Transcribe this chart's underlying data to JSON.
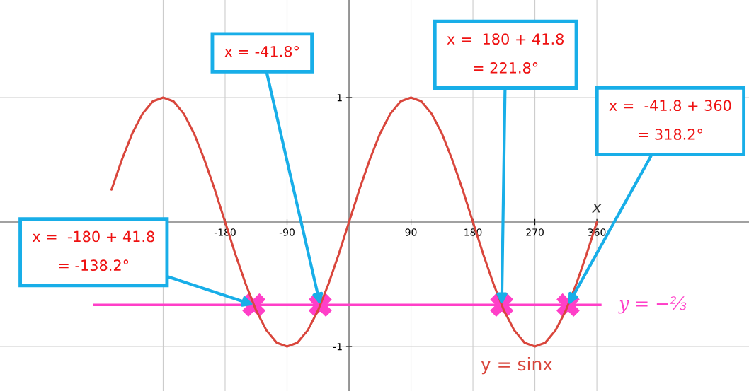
{
  "chart_data": {
    "type": "line",
    "xlabel": "x",
    "xlim": [
      -507,
      581
    ],
    "ylim": [
      -1.358,
      1.784
    ],
    "xticks": [
      {
        "value": -270,
        "label": null
      },
      -180,
      -90,
      90,
      180,
      270,
      360
    ],
    "yticks": [
      1,
      -1
    ],
    "grid": true,
    "legend": false,
    "series": [
      {
        "name": "y = sinx",
        "color": "#d9463c",
        "marker": "none",
        "x": [
          -345,
          -330,
          -315,
          -300,
          -285,
          -270,
          -255,
          -240,
          -225,
          -210,
          -195,
          -180,
          -165,
          -150,
          -135,
          -120,
          -105,
          -90,
          -75,
          -60,
          -45,
          -30,
          -15,
          0,
          15,
          30,
          45,
          60,
          75,
          90,
          105,
          120,
          135,
          150,
          165,
          180,
          195,
          210,
          225,
          240,
          255,
          270,
          285,
          300,
          315,
          330,
          345,
          360
        ],
        "values": [
          0.26,
          0.5,
          0.71,
          0.87,
          0.97,
          1,
          0.97,
          0.87,
          0.71,
          0.5,
          0.26,
          0,
          -0.26,
          -0.5,
          -0.71,
          -0.87,
          -0.97,
          -1,
          -0.97,
          -0.87,
          -0.71,
          -0.5,
          -0.26,
          0,
          0.26,
          0.5,
          0.71,
          0.87,
          0.97,
          1,
          0.97,
          0.87,
          0.71,
          0.5,
          0.26,
          0,
          -0.26,
          -0.5,
          -0.71,
          -0.87,
          -0.97,
          -1,
          -0.97,
          -0.87,
          -0.71,
          -0.5,
          -0.26,
          0
        ]
      },
      {
        "color": "#ff3fc8",
        "type": "scatter",
        "marker": "cross",
        "x": [
          -138.2,
          -41.8,
          221.8,
          318.2
        ],
        "values": [
          -0.667,
          -0.667,
          -0.667,
          -0.667
        ]
      }
    ],
    "ref_lines": [
      {
        "axis": "y",
        "value": -0.6667,
        "label": "y = −⅔",
        "color": "#ff3fc8"
      }
    ],
    "annotations": [
      {
        "text": "x =  -180 + 41.8\n= -138.2°",
        "x": -138.2,
        "y": -0.667
      },
      {
        "text": "x = -41.8°",
        "x": -41.8,
        "y": -0.667
      },
      {
        "text": "x =  180 + 41.8\n= 221.8°",
        "x": 221.8,
        "y": -0.667
      },
      {
        "text": "x =  -41.8 + 360\n= 318.2°",
        "x": 318.2,
        "y": -0.667
      }
    ]
  }
}
